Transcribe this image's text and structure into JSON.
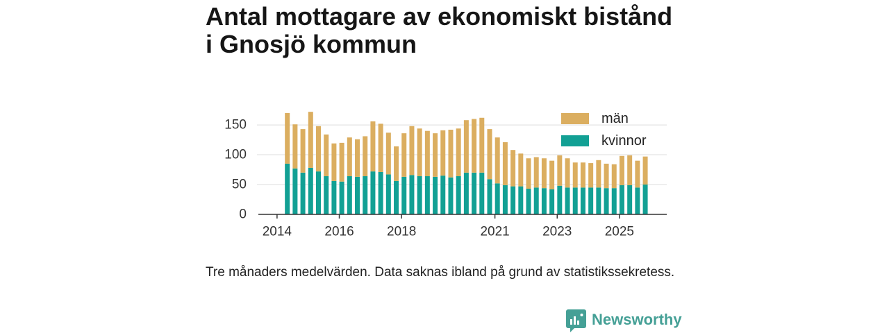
{
  "chart_data": {
    "type": "bar",
    "stacked": true,
    "title": "Antal mottagare av ekonomiskt bistånd i Gnosjö kommun",
    "caption": "Tre månaders medelvärden. Data saknas ibland på grund av statistikssekretess.",
    "x": [
      2014.33,
      2014.58,
      2014.83,
      2015.08,
      2015.33,
      2015.58,
      2015.83,
      2016.08,
      2016.33,
      2016.58,
      2016.83,
      2017.08,
      2017.33,
      2017.58,
      2017.83,
      2018.08,
      2018.33,
      2018.58,
      2018.83,
      2019.08,
      2019.33,
      2019.58,
      2019.83,
      2020.08,
      2020.33,
      2020.58,
      2020.83,
      2021.08,
      2021.33,
      2021.58,
      2021.83,
      2022.08,
      2022.33,
      2022.58,
      2022.83,
      2023.08,
      2023.33,
      2023.58,
      2023.83,
      2024.08,
      2024.33,
      2024.58,
      2024.83,
      2025.08,
      2025.33,
      2025.58,
      2025.83
    ],
    "series": [
      {
        "name": "män",
        "color": "#dbae60",
        "values": [
          85,
          74,
          73,
          94,
          76,
          70,
          63,
          65,
          65,
          63,
          67,
          84,
          81,
          70,
          58,
          73,
          82,
          80,
          76,
          73,
          76,
          80,
          80,
          88,
          90,
          92,
          84,
          77,
          72,
          61,
          55,
          51,
          51,
          50,
          48,
          51,
          49,
          42,
          42,
          41,
          46,
          41,
          40,
          49,
          50,
          45,
          47
        ]
      },
      {
        "name": "kvinnor",
        "color": "#12a094",
        "values": [
          85,
          77,
          70,
          78,
          72,
          64,
          56,
          55,
          64,
          63,
          64,
          72,
          71,
          67,
          56,
          63,
          66,
          64,
          64,
          63,
          65,
          62,
          64,
          70,
          70,
          70,
          59,
          52,
          49,
          47,
          47,
          43,
          45,
          44,
          42,
          48,
          45,
          45,
          45,
          45,
          45,
          44,
          44,
          49,
          49,
          45,
          50
        ]
      }
    ],
    "xticks": [
      "2014",
      "2016",
      "2018",
      "2021",
      "2023",
      "2025"
    ],
    "yticks": [
      0,
      50,
      100,
      150
    ],
    "xlim": [
      2013.4,
      2026.52
    ],
    "ylim": [
      0,
      185
    ],
    "grid": true,
    "legend": "top-right"
  },
  "brand": {
    "name": "Newsworthy",
    "icon": "newsworthy-logo-icon",
    "color": "#45a096"
  }
}
